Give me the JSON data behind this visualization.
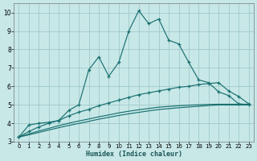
{
  "xlabel": "Humidex (Indice chaleur)",
  "bg_color": "#c8e8e8",
  "grid_color": "#a0c8c8",
  "line_color": "#1a7070",
  "xlim": [
    -0.5,
    23.5
  ],
  "ylim": [
    3.0,
    10.5
  ],
  "yticks": [
    3,
    4,
    5,
    6,
    7,
    8,
    9,
    10
  ],
  "xticks": [
    0,
    1,
    2,
    3,
    4,
    5,
    6,
    7,
    8,
    9,
    10,
    11,
    12,
    13,
    14,
    15,
    16,
    17,
    18,
    19,
    20,
    21,
    22,
    23
  ],
  "line1_x": [
    0,
    1,
    2,
    3,
    4,
    5,
    6,
    7,
    8,
    9,
    10,
    11,
    12,
    13,
    14,
    15,
    16,
    17,
    18,
    19,
    20,
    21,
    22,
    23
  ],
  "line1_y": [
    3.25,
    3.9,
    4.0,
    4.05,
    4.15,
    4.7,
    5.0,
    6.9,
    7.6,
    6.55,
    7.3,
    9.0,
    10.1,
    9.4,
    9.65,
    8.5,
    8.3,
    7.3,
    6.35,
    6.2,
    5.7,
    5.5,
    5.05,
    5.0
  ],
  "line2_x": [
    0,
    1,
    2,
    3,
    4,
    5,
    6,
    7,
    8,
    9,
    10,
    11,
    12,
    13,
    14,
    15,
    16,
    17,
    18,
    19,
    20,
    21,
    22,
    23
  ],
  "line2_y": [
    3.25,
    3.55,
    3.8,
    4.0,
    4.15,
    4.4,
    4.6,
    4.75,
    4.95,
    5.1,
    5.25,
    5.4,
    5.55,
    5.65,
    5.75,
    5.85,
    5.95,
    6.0,
    6.1,
    6.15,
    6.2,
    5.75,
    5.45,
    5.05
  ],
  "line3_x": [
    0,
    1,
    2,
    3,
    4,
    5,
    6,
    7,
    8,
    9,
    10,
    11,
    12,
    13,
    14,
    15,
    16,
    17,
    18,
    19,
    20,
    21,
    22,
    23
  ],
  "line3_y": [
    3.25,
    3.42,
    3.58,
    3.72,
    3.87,
    4.0,
    4.12,
    4.23,
    4.35,
    4.45,
    4.56,
    4.65,
    4.73,
    4.8,
    4.87,
    4.91,
    4.95,
    4.98,
    5.0,
    5.02,
    5.03,
    5.03,
    5.03,
    5.03
  ],
  "line4_x": [
    0,
    1,
    2,
    3,
    4,
    5,
    6,
    7,
    8,
    9,
    10,
    11,
    12,
    13,
    14,
    15,
    16,
    17,
    18,
    19,
    20,
    21,
    22,
    23
  ],
  "line4_y": [
    3.25,
    3.37,
    3.5,
    3.63,
    3.76,
    3.88,
    3.99,
    4.1,
    4.22,
    4.32,
    4.42,
    4.51,
    4.59,
    4.67,
    4.74,
    4.79,
    4.84,
    4.88,
    4.92,
    4.96,
    4.99,
    4.99,
    4.99,
    4.99
  ]
}
